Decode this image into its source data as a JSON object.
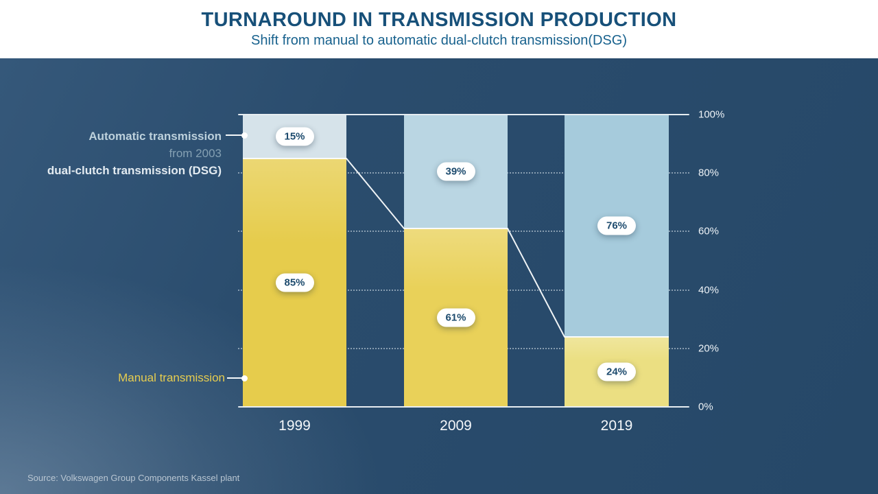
{
  "header": {
    "title": "TURNAROUND IN TRANSMISSION PRODUCTION",
    "subtitle": "Shift from manual to automatic dual-clutch transmission(DSG)"
  },
  "annotations": {
    "automatic_label": "Automatic transmission",
    "automatic_sub1": "from 2003",
    "automatic_sub2": "dual-clutch transmission (DSG)",
    "manual_label": "Manual transmission"
  },
  "source": "Source: Volkswagen Group Components Kassel plant",
  "chart_data": {
    "type": "bar",
    "stacked": true,
    "title": "Turnaround in transmission production",
    "categories": [
      "1999",
      "2009",
      "2019"
    ],
    "series": [
      {
        "name": "Manual transmission",
        "values": [
          85,
          61,
          24
        ]
      },
      {
        "name": "Automatic transmission (DSG)",
        "values": [
          15,
          39,
          76
        ]
      }
    ],
    "value_labels": {
      "manual": [
        "85%",
        "61%",
        "24%"
      ],
      "automatic": [
        "15%",
        "39%",
        "76%"
      ]
    },
    "y_ticks": [
      "0%",
      "20%",
      "40%",
      "60%",
      "80%",
      "100%"
    ],
    "ylim": [
      0,
      100
    ],
    "grid": "dotted horizontal lines at 20/40/60/80, solid lines at 0 and 100",
    "legend_position": "left annotations with leader dots",
    "manual_colors": [
      "#e6cc4c",
      "#e9d159",
      "#ebdf82"
    ],
    "automatic_colors": [
      "#d6e3ea",
      "#bad6e3",
      "#a6cbdc"
    ],
    "step_line_color": "#fbfdfe",
    "pill_text_color": "#1d4b6e",
    "background_color": "#27496a",
    "title_color": "#175079"
  }
}
